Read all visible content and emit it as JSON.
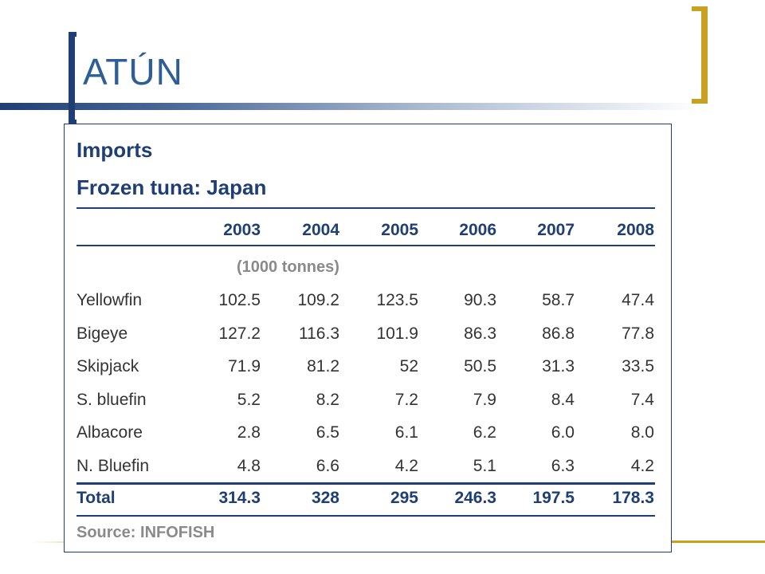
{
  "slide": {
    "title": "ATÚN"
  },
  "table": {
    "heading": "Imports",
    "subheading": "Frozen tuna:  Japan",
    "years": [
      "2003",
      "2004",
      "2005",
      "2006",
      "2007",
      "2008"
    ],
    "unit": "(1000 tonnes)",
    "rows": [
      {
        "label": "Yellowfin",
        "values": [
          "102.5",
          "109.2",
          "123.5",
          "90.3",
          "58.7",
          "47.4"
        ]
      },
      {
        "label": "Bigeye",
        "values": [
          "127.2",
          "116.3",
          "101.9",
          "86.3",
          "86.8",
          "77.8"
        ]
      },
      {
        "label": "Skipjack",
        "values": [
          "71.9",
          "81.2",
          "52",
          "50.5",
          "31.3",
          "33.5"
        ]
      },
      {
        "label": "S. bluefin",
        "values": [
          "5.2",
          "8.2",
          "7.2",
          "7.9",
          "8.4",
          "7.4"
        ]
      },
      {
        "label": "Albacore",
        "values": [
          "2.8",
          "6.5",
          "6.1",
          "6.2",
          "6.0",
          "8.0"
        ]
      },
      {
        "label": "N. Bluefin",
        "values": [
          "4.8",
          "6.6",
          "4.2",
          "5.1",
          "6.3",
          "4.2"
        ]
      }
    ],
    "total": {
      "label": "Total",
      "values": [
        "314.3",
        "328",
        "295",
        "246.3",
        "197.5",
        "178.3"
      ]
    },
    "source": "Source: INFOFISH"
  },
  "colors": {
    "navy": "#1f3f74",
    "title_blue": "#2e5e95",
    "gold": "#c9a020",
    "grey": "#8a8a8a"
  }
}
